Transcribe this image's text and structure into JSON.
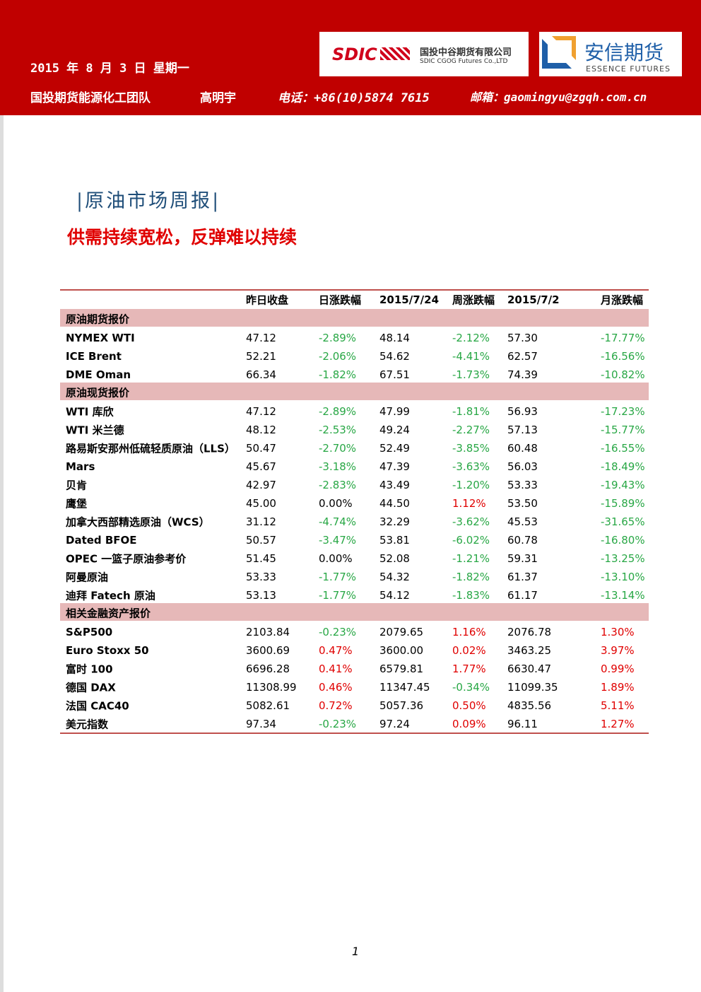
{
  "header": {
    "date": "2015 年 8 月 3 日 星期一",
    "team": "国投期货能源化工团队",
    "author": "高明宇",
    "phone": "电话：+86(10)5874 7615",
    "email": "邮箱：gaomingyu@zgqh.com.cn",
    "logo1": {
      "mark": "SDIC",
      "name": "国投中谷期货有限公司",
      "english": "SDIC CGOG Futures Co.,LTD"
    },
    "logo2": {
      "name": "安信期货",
      "english": "ESSENCE FUTURES"
    }
  },
  "title": "|原油市场周报|",
  "subtitle": "供需持续宽松，反弹难以持续",
  "table": {
    "header": [
      "昨日收盘",
      "日涨跌幅",
      "2015/7/24",
      "周涨跌幅",
      "2015/7/2",
      "月涨跌幅"
    ],
    "sections": [
      {
        "title": "原油期货报价",
        "rows": [
          [
            "NYMEX WTI",
            "47.12",
            "-2.89%",
            "48.14",
            "-2.12%",
            "57.30",
            "-17.77%"
          ],
          [
            "ICE Brent",
            "52.21",
            "-2.06%",
            "54.62",
            "-4.41%",
            "62.57",
            "-16.56%"
          ],
          [
            "DME Oman",
            "66.34",
            "-1.82%",
            "67.51",
            "-1.73%",
            "74.39",
            "-10.82%"
          ]
        ]
      },
      {
        "title": "原油现货报价",
        "rows": [
          [
            "WTI 库欣",
            "47.12",
            "-2.89%",
            "47.99",
            "-1.81%",
            "56.93",
            "-17.23%"
          ],
          [
            "WTI 米兰德",
            "48.12",
            "-2.53%",
            "49.24",
            "-2.27%",
            "57.13",
            "-15.77%"
          ],
          [
            "路易斯安那州低硫轻质原油（LLS）",
            "50.47",
            "-2.70%",
            "52.49",
            "-3.85%",
            "60.48",
            "-16.55%"
          ],
          [
            "Mars",
            "45.67",
            "-3.18%",
            "47.39",
            "-3.63%",
            "56.03",
            "-18.49%"
          ],
          [
            "贝肯",
            "42.97",
            "-2.83%",
            "43.49",
            "-1.20%",
            "53.33",
            "-19.43%"
          ],
          [
            "鹰堡",
            "45.00",
            "0.00%",
            "44.50",
            "1.12%",
            "53.50",
            "-15.89%"
          ],
          [
            "加拿大西部精选原油（WCS）",
            "31.12",
            "-4.74%",
            "32.29",
            "-3.62%",
            "45.53",
            "-31.65%"
          ],
          [
            "Dated BFOE",
            "50.57",
            "-3.47%",
            "53.81",
            "-6.02%",
            "60.78",
            "-16.80%"
          ],
          [
            "OPEC 一篮子原油参考价",
            "51.45",
            "0.00%",
            "52.08",
            "-1.21%",
            "59.31",
            "-13.25%"
          ],
          [
            "阿曼原油",
            "53.33",
            "-1.77%",
            "54.32",
            "-1.82%",
            "61.37",
            "-13.10%"
          ],
          [
            "迪拜 Fatech 原油",
            "53.13",
            "-1.77%",
            "54.12",
            "-1.83%",
            "61.17",
            "-13.14%"
          ]
        ]
      },
      {
        "title": "相关金融资产报价",
        "rows": [
          [
            "S&P500",
            "2103.84",
            "-0.23%",
            "2079.65",
            "1.16%",
            "2076.78",
            "1.30%"
          ],
          [
            "Euro Stoxx 50",
            "3600.69",
            "0.47%",
            "3600.00",
            "0.02%",
            "3463.25",
            "3.97%"
          ],
          [
            "富时 100",
            "6696.28",
            "0.41%",
            "6579.81",
            "1.77%",
            "6630.47",
            "0.99%"
          ],
          [
            "德国 DAX",
            "11308.99",
            "0.46%",
            "11347.45",
            "-0.34%",
            "11099.35",
            "1.89%"
          ],
          [
            "法国 CAC40",
            "5082.61",
            "0.72%",
            "5057.36",
            "0.50%",
            "4835.56",
            "5.11%"
          ],
          [
            "美元指数",
            "97.34",
            "-0.23%",
            "97.24",
            "0.09%",
            "96.11",
            "1.27%"
          ]
        ]
      }
    ]
  },
  "page_number": "1"
}
